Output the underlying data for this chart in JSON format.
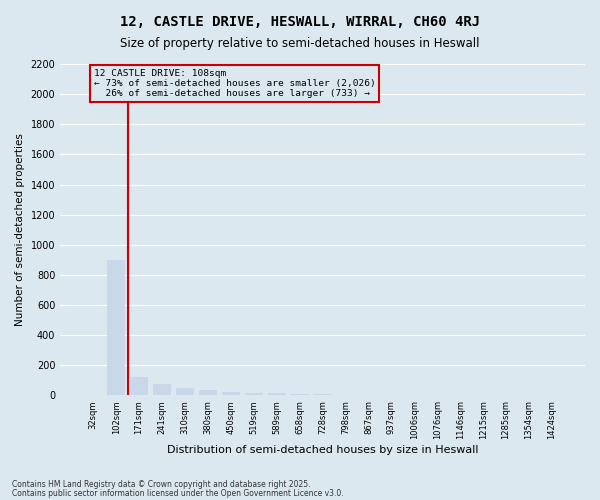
{
  "title": "12, CASTLE DRIVE, HESWALL, WIRRAL, CH60 4RJ",
  "subtitle": "Size of property relative to semi-detached houses in Heswall",
  "xlabel": "Distribution of semi-detached houses by size in Heswall",
  "ylabel": "Number of semi-detached properties",
  "annotation_line1": "12 CASTLE DRIVE: 108sqm",
  "annotation_line2": "← 73% of semi-detached houses are smaller (2,026)",
  "annotation_line3": "26% of semi-detached houses are larger (733) →",
  "footer_line1": "Contains HM Land Registry data © Crown copyright and database right 2025.",
  "footer_line2": "Contains public sector information licensed under the Open Government Licence v3.0.",
  "line_color": "#cc0000",
  "bar_color": "#c8d8e8",
  "background_color": "#dce8f0",
  "ylim": [
    0,
    2200
  ],
  "yticks": [
    0,
    200,
    400,
    600,
    800,
    1000,
    1200,
    1400,
    1600,
    1800,
    2000,
    2200
  ],
  "bin_labels": [
    "32sqm",
    "102sqm",
    "171sqm",
    "241sqm",
    "310sqm",
    "380sqm",
    "450sqm",
    "519sqm",
    "589sqm",
    "658sqm",
    "728sqm",
    "798sqm",
    "867sqm",
    "937sqm",
    "1006sqm",
    "1076sqm",
    "1146sqm",
    "1215sqm",
    "1285sqm",
    "1354sqm",
    "1424sqm"
  ],
  "values": [
    5,
    900,
    120,
    75,
    50,
    35,
    25,
    18,
    14,
    10,
    8,
    6,
    5,
    4,
    3,
    2,
    2,
    1,
    1,
    1,
    0
  ]
}
